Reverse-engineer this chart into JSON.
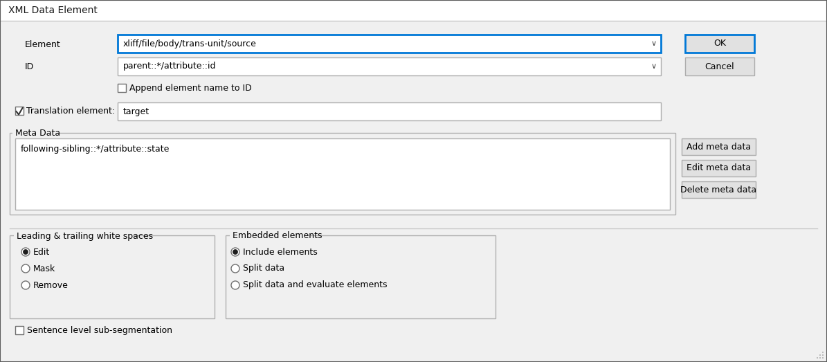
{
  "title": "XML Data Element",
  "bg_color": "#f0f0f0",
  "dialog_bg": "#f0f0f0",
  "white": "#ffffff",
  "border_color": "#a0a0a0",
  "blue_border": "#0078d7",
  "button_bg": "#e1e1e1",
  "text_color": "#000000",
  "element_label": "Element",
  "element_value": "xliff/file/body/trans-unit/source",
  "id_label": "ID",
  "id_value": "parent::*/attribute::id",
  "append_label": "Append element name to ID",
  "translation_label": "Translation element:",
  "translation_value": "target",
  "meta_data_label": "Meta Data",
  "meta_data_value": "following-sibling::*/attribute::state",
  "ok_label": "OK",
  "cancel_label": "Cancel",
  "add_meta_label": "Add meta data",
  "edit_meta_label": "Edit meta data",
  "delete_meta_label": "Delete meta data",
  "leading_group_label": "Leading & trailing white spaces",
  "radio_edit": "Edit",
  "radio_mask": "Mask",
  "radio_remove": "Remove",
  "embedded_group_label": "Embedded elements",
  "radio_include": "Include elements",
  "radio_split": "Split data",
  "radio_split_eval": "Split data and evaluate elements",
  "sentence_label": "Sentence level sub-segmentation",
  "title_bar_height": 30,
  "title_bar_color": "#ffffff",
  "title_bar_bottom_line": "#c0c0c0",
  "combo_arrow": "v"
}
